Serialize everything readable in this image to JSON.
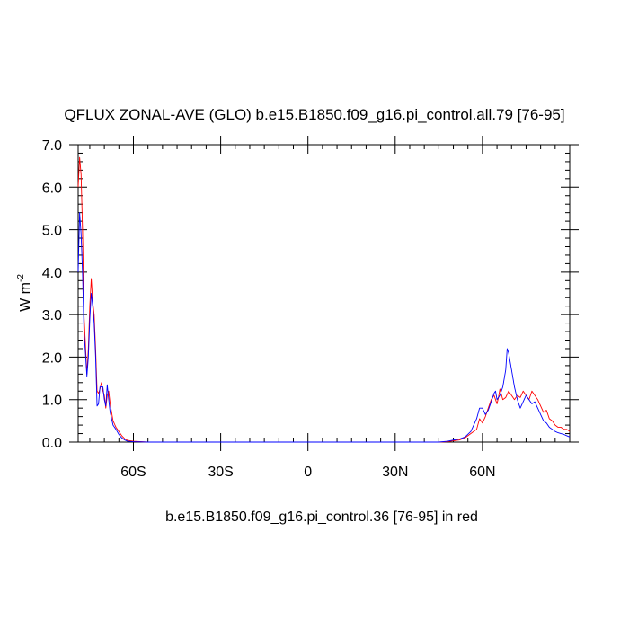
{
  "chart_data": {
    "type": "line",
    "title": "QFLUX ZONAL-AVE (GLO) b.e15.B1850.f09_g16.pi_control.all.79 [76-95]",
    "ylabel": "W m",
    "ylabel_exp": "-2",
    "xlabel": "b.e15.B1850.f09_g16.pi_control.36 [76-95] in red",
    "xlim": [
      -79,
      90
    ],
    "ylim": [
      0,
      7
    ],
    "x_ticks": [
      {
        "value": -60,
        "label": "60S"
      },
      {
        "value": -30,
        "label": "30S"
      },
      {
        "value": 0,
        "label": "0"
      },
      {
        "value": 30,
        "label": "30N"
      },
      {
        "value": 60,
        "label": "60N"
      }
    ],
    "y_ticks": [
      {
        "value": 0,
        "label": "0.0"
      },
      {
        "value": 1,
        "label": "1.0"
      },
      {
        "value": 2,
        "label": "2.0"
      },
      {
        "value": 3,
        "label": "3.0"
      },
      {
        "value": 4,
        "label": "4.0"
      },
      {
        "value": 5,
        "label": "5.0"
      },
      {
        "value": 6,
        "label": "6.0"
      },
      {
        "value": 7,
        "label": "7.0"
      }
    ],
    "series": [
      {
        "color": "#ff0000",
        "points": [
          [
            -79,
            6.0
          ],
          [
            -78.5,
            6.7
          ],
          [
            -78,
            6.3
          ],
          [
            -77.5,
            5.0
          ],
          [
            -77,
            3.0
          ],
          [
            -76.5,
            2.3
          ],
          [
            -76,
            1.6
          ],
          [
            -75.5,
            2.2
          ],
          [
            -75,
            3.2
          ],
          [
            -74.5,
            3.85
          ],
          [
            -74,
            3.3
          ],
          [
            -73.5,
            3.0
          ],
          [
            -73,
            2.2
          ],
          [
            -72.5,
            1.2
          ],
          [
            -72,
            1.15
          ],
          [
            -71.5,
            1.25
          ],
          [
            -71,
            1.4
          ],
          [
            -70.5,
            1.2
          ],
          [
            -70,
            1.1
          ],
          [
            -69.5,
            0.8
          ],
          [
            -69,
            1.1
          ],
          [
            -68.5,
            1.2
          ],
          [
            -68,
            0.9
          ],
          [
            -67.5,
            0.7
          ],
          [
            -67,
            0.5
          ],
          [
            -66,
            0.35
          ],
          [
            -65,
            0.25
          ],
          [
            -64,
            0.15
          ],
          [
            -63,
            0.08
          ],
          [
            -62,
            0.04
          ],
          [
            -60,
            0.02
          ],
          [
            -55,
            0.0
          ],
          [
            45,
            0.0
          ],
          [
            48,
            0.01
          ],
          [
            50,
            0.03
          ],
          [
            52,
            0.05
          ],
          [
            54,
            0.1
          ],
          [
            56,
            0.2
          ],
          [
            58,
            0.3
          ],
          [
            59,
            0.55
          ],
          [
            60,
            0.45
          ],
          [
            61,
            0.6
          ],
          [
            62,
            0.8
          ],
          [
            63,
            1.0
          ],
          [
            64,
            1.1
          ],
          [
            65,
            0.9
          ],
          [
            65.5,
            1.05
          ],
          [
            66,
            1.25
          ],
          [
            67,
            1.0
          ],
          [
            68,
            1.05
          ],
          [
            69,
            1.2
          ],
          [
            70,
            1.1
          ],
          [
            71,
            1.0
          ],
          [
            72,
            1.1
          ],
          [
            73,
            1.05
          ],
          [
            74,
            1.2
          ],
          [
            75,
            1.1
          ],
          [
            76,
            1.0
          ],
          [
            77,
            1.2
          ],
          [
            78,
            1.1
          ],
          [
            79,
            1.0
          ],
          [
            80,
            0.85
          ],
          [
            81,
            0.7
          ],
          [
            82,
            0.75
          ],
          [
            83,
            0.55
          ],
          [
            84,
            0.5
          ],
          [
            85,
            0.4
          ],
          [
            86,
            0.35
          ],
          [
            87,
            0.35
          ],
          [
            88,
            0.3
          ],
          [
            89,
            0.3
          ],
          [
            90,
            0.25
          ]
        ]
      },
      {
        "color": "#0000ff",
        "points": [
          [
            -79,
            4.0
          ],
          [
            -78.5,
            5.4
          ],
          [
            -78,
            4.9
          ],
          [
            -77.5,
            4.0
          ],
          [
            -77,
            2.6
          ],
          [
            -76.5,
            2.1
          ],
          [
            -76,
            1.55
          ],
          [
            -75.5,
            2.0
          ],
          [
            -75,
            2.9
          ],
          [
            -74.5,
            3.5
          ],
          [
            -74,
            3.2
          ],
          [
            -73.5,
            2.8
          ],
          [
            -73,
            2.0
          ],
          [
            -72.5,
            0.85
          ],
          [
            -72,
            0.9
          ],
          [
            -71.5,
            1.3
          ],
          [
            -71,
            1.3
          ],
          [
            -70.5,
            1.3
          ],
          [
            -70,
            1.0
          ],
          [
            -69.5,
            0.85
          ],
          [
            -69,
            1.35
          ],
          [
            -68.5,
            1.0
          ],
          [
            -68,
            0.7
          ],
          [
            -67.5,
            0.55
          ],
          [
            -67,
            0.4
          ],
          [
            -66,
            0.3
          ],
          [
            -65,
            0.18
          ],
          [
            -64,
            0.1
          ],
          [
            -63,
            0.05
          ],
          [
            -62,
            0.02
          ],
          [
            -60,
            0.01
          ],
          [
            -55,
            0.0
          ],
          [
            45,
            0.0
          ],
          [
            48,
            0.02
          ],
          [
            50,
            0.05
          ],
          [
            52,
            0.07
          ],
          [
            54,
            0.12
          ],
          [
            56,
            0.25
          ],
          [
            58,
            0.55
          ],
          [
            59,
            0.8
          ],
          [
            60,
            0.8
          ],
          [
            61,
            0.65
          ],
          [
            62,
            0.75
          ],
          [
            63,
            0.95
          ],
          [
            64,
            1.15
          ],
          [
            64.5,
            1.2
          ],
          [
            65,
            1.0
          ],
          [
            66,
            1.1
          ],
          [
            67,
            1.3
          ],
          [
            68,
            1.7
          ],
          [
            68.5,
            2.2
          ],
          [
            69,
            2.1
          ],
          [
            70,
            1.7
          ],
          [
            71,
            1.3
          ],
          [
            72,
            1.0
          ],
          [
            73,
            0.8
          ],
          [
            74,
            0.95
          ],
          [
            75,
            1.1
          ],
          [
            76,
            1.0
          ],
          [
            77,
            0.9
          ],
          [
            78,
            0.95
          ],
          [
            79,
            0.8
          ],
          [
            80,
            0.65
          ],
          [
            81,
            0.5
          ],
          [
            82,
            0.45
          ],
          [
            83,
            0.35
          ],
          [
            84,
            0.3
          ],
          [
            85,
            0.25
          ],
          [
            86,
            0.22
          ],
          [
            87,
            0.2
          ],
          [
            88,
            0.18
          ],
          [
            89,
            0.15
          ],
          [
            90,
            0.12
          ]
        ]
      }
    ]
  }
}
